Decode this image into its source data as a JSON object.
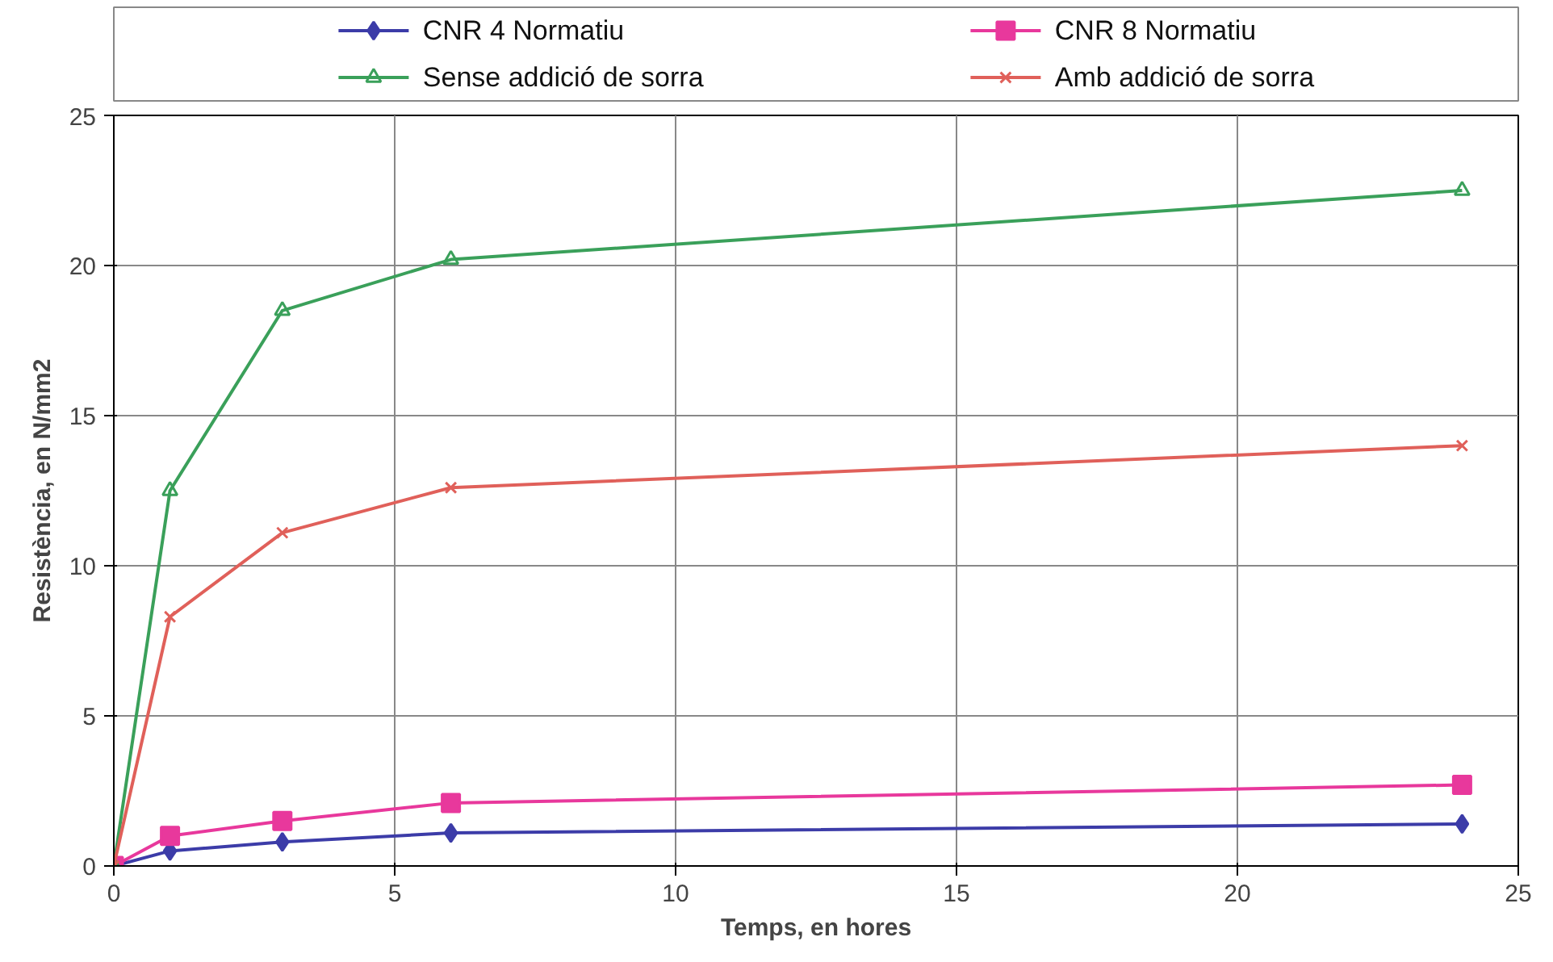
{
  "chart_data": {
    "type": "line",
    "xlabel": "Temps, en hores",
    "ylabel": "Resistència, en N/mm2",
    "x": [
      0,
      1,
      3,
      6,
      24
    ],
    "series": [
      {
        "name": "CNR 4 Normatiu",
        "color": "#3c3ca8",
        "marker": "diamond",
        "values": [
          0,
          0.5,
          0.8,
          1.1,
          1.4
        ]
      },
      {
        "name": "CNR 8 Normatiu",
        "color": "#e8389c",
        "marker": "square",
        "values": [
          0,
          1.0,
          1.5,
          2.1,
          2.7
        ]
      },
      {
        "name": "Sense addició de sorra",
        "color": "#3aa05a",
        "marker": "triangle",
        "values": [
          0,
          12.5,
          18.5,
          20.2,
          22.5
        ]
      },
      {
        "name": "Amb addició de sorra",
        "color": "#e0605a",
        "marker": "cross",
        "values": [
          0,
          8.3,
          11.1,
          12.6,
          14.0
        ]
      }
    ],
    "xlim": [
      0,
      25
    ],
    "ylim": [
      0,
      25
    ],
    "xticks": [
      0,
      5,
      10,
      15,
      20,
      25
    ],
    "yticks": [
      0,
      5,
      10,
      15,
      20,
      25
    ],
    "grid": true,
    "legend": "top"
  }
}
